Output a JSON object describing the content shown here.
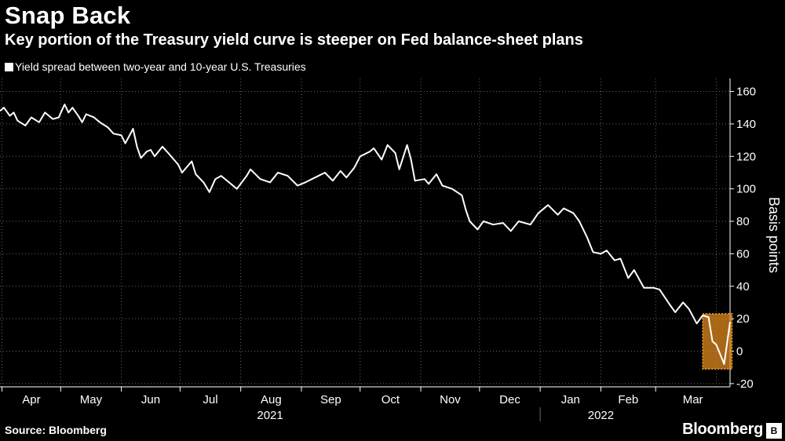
{
  "header": {
    "title": "Snap Back",
    "subtitle": "Key portion of the Treasury yield curve is steeper on Fed balance-sheet plans"
  },
  "footer": {
    "source": "Source: Bloomberg",
    "brand": "Bloomberg",
    "brand_mark": "B"
  },
  "colors": {
    "background": "#000000",
    "line": "#ffffff",
    "grid": "#666666",
    "highlight": "#e08a1e"
  },
  "chart_data": {
    "type": "line",
    "title": "Snap Back",
    "subtitle": "Key portion of the Treasury yield curve is steeper on Fed balance-sheet plans",
    "ylabel": "Basis points",
    "xlabel": "",
    "ylim": [
      -22,
      168
    ],
    "yticks": [
      -20,
      0,
      20,
      40,
      60,
      80,
      100,
      120,
      140,
      160
    ],
    "grid": true,
    "legend_placement": "top-left",
    "x_range": [
      "2021-03-31",
      "2022-04-08"
    ],
    "month_ticks": [
      {
        "label": "Apr",
        "date": "2021-04-01"
      },
      {
        "label": "May",
        "date": "2021-05-01"
      },
      {
        "label": "Jun",
        "date": "2021-06-01"
      },
      {
        "label": "Jul",
        "date": "2021-07-01"
      },
      {
        "label": "Aug",
        "date": "2021-08-01"
      },
      {
        "label": "Sep",
        "date": "2021-09-01"
      },
      {
        "label": "Oct",
        "date": "2021-10-01"
      },
      {
        "label": "Nov",
        "date": "2021-11-01"
      },
      {
        "label": "Dec",
        "date": "2021-12-01"
      },
      {
        "label": "Jan",
        "date": "2022-01-01"
      },
      {
        "label": "Feb",
        "date": "2022-02-01"
      },
      {
        "label": "Mar",
        "date": "2022-03-01"
      }
    ],
    "year_labels": [
      {
        "label": "2021",
        "date": "2021-08-16"
      },
      {
        "label": "2022",
        "date": "2022-02-01"
      }
    ],
    "year_divider": "2022-01-01",
    "highlight": {
      "x": [
        "2022-03-25",
        "2022-04-09"
      ],
      "y": [
        -11,
        23
      ]
    },
    "series": [
      {
        "name": "Yield spread between two-year and 10-year U.S. Treasuries",
        "x": [
          "2021-03-31",
          "2021-04-02",
          "2021-04-05",
          "2021-04-07",
          "2021-04-09",
          "2021-04-13",
          "2021-04-16",
          "2021-04-20",
          "2021-04-23",
          "2021-04-27",
          "2021-04-30",
          "2021-05-03",
          "2021-05-05",
          "2021-05-07",
          "2021-05-10",
          "2021-05-12",
          "2021-05-14",
          "2021-05-18",
          "2021-05-21",
          "2021-05-25",
          "2021-05-28",
          "2021-06-01",
          "2021-06-03",
          "2021-06-07",
          "2021-06-09",
          "2021-06-11",
          "2021-06-14",
          "2021-06-16",
          "2021-06-18",
          "2021-06-22",
          "2021-06-25",
          "2021-06-30",
          "2021-07-02",
          "2021-07-07",
          "2021-07-09",
          "2021-07-13",
          "2021-07-16",
          "2021-07-19",
          "2021-07-22",
          "2021-07-27",
          "2021-07-30",
          "2021-08-04",
          "2021-08-06",
          "2021-08-11",
          "2021-08-16",
          "2021-08-20",
          "2021-08-25",
          "2021-08-30",
          "2021-09-03",
          "2021-09-08",
          "2021-09-13",
          "2021-09-17",
          "2021-09-21",
          "2021-09-24",
          "2021-09-28",
          "2021-10-01",
          "2021-10-06",
          "2021-10-08",
          "2021-10-12",
          "2021-10-15",
          "2021-10-19",
          "2021-10-21",
          "2021-10-25",
          "2021-10-27",
          "2021-10-29",
          "2021-11-03",
          "2021-11-05",
          "2021-11-09",
          "2021-11-12",
          "2021-11-17",
          "2021-11-22",
          "2021-11-24",
          "2021-11-26",
          "2021-11-30",
          "2021-12-03",
          "2021-12-08",
          "2021-12-13",
          "2021-12-17",
          "2021-12-21",
          "2021-12-27",
          "2021-12-31",
          "2022-01-05",
          "2022-01-10",
          "2022-01-13",
          "2022-01-18",
          "2022-01-21",
          "2022-01-25",
          "2022-01-28",
          "2022-02-01",
          "2022-02-04",
          "2022-02-08",
          "2022-02-11",
          "2022-02-15",
          "2022-02-18",
          "2022-02-23",
          "2022-02-28",
          "2022-03-03",
          "2022-03-08",
          "2022-03-11",
          "2022-03-15",
          "2022-03-18",
          "2022-03-22",
          "2022-03-25",
          "2022-03-28",
          "2022-03-30",
          "2022-04-01",
          "2022-04-05",
          "2022-04-08"
        ],
        "y": [
          148,
          150,
          145,
          147,
          142,
          139,
          144,
          141,
          147,
          143,
          144,
          152,
          147,
          150,
          145,
          141,
          146,
          144,
          141,
          138,
          134,
          133,
          128,
          137,
          126,
          119,
          123,
          124,
          120,
          126,
          122,
          115,
          110,
          117,
          109,
          104,
          98,
          106,
          108,
          103,
          100,
          108,
          112,
          106,
          104,
          110,
          108,
          102,
          104,
          107,
          110,
          105,
          111,
          107,
          113,
          120,
          123,
          125,
          118,
          127,
          122,
          112,
          127,
          118,
          105,
          106,
          103,
          109,
          102,
          100,
          96,
          87,
          80,
          75,
          80,
          78,
          79,
          74,
          80,
          78,
          85,
          90,
          84,
          88,
          85,
          80,
          70,
          61,
          60,
          62,
          56,
          57,
          45,
          50,
          39,
          39,
          38,
          29,
          24,
          30,
          26,
          17,
          22,
          21,
          6,
          4,
          -8,
          18
        ]
      }
    ]
  }
}
